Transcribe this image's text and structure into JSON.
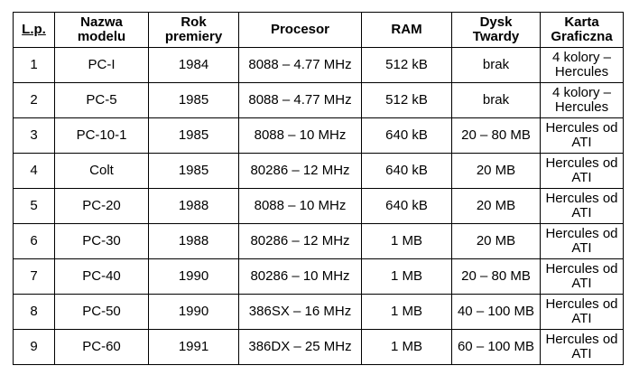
{
  "table": {
    "headers": [
      {
        "lines": [
          "L.p."
        ]
      },
      {
        "lines": [
          "Nazwa",
          "modelu"
        ]
      },
      {
        "lines": [
          "Rok",
          "premiery"
        ]
      },
      {
        "lines": [
          "Procesor"
        ]
      },
      {
        "lines": [
          "RAM"
        ]
      },
      {
        "lines": [
          "Dysk",
          "Twardy"
        ]
      },
      {
        "lines": [
          "Karta",
          "Graficzna"
        ]
      }
    ],
    "rows": [
      {
        "lp": "1",
        "model": "PC-I",
        "year": "1984",
        "cpu": "8088 – 4.77 MHz",
        "ram": "512 kB",
        "hdd": "brak",
        "gpu": [
          "4 kolory –",
          "Hercules"
        ]
      },
      {
        "lp": "2",
        "model": "PC-5",
        "year": "1985",
        "cpu": "8088 – 4.77 MHz",
        "ram": "512 kB",
        "hdd": "brak",
        "gpu": [
          "4 kolory –",
          "Hercules"
        ]
      },
      {
        "lp": "3",
        "model": "PC-10-1",
        "year": "1985",
        "cpu": "8088 – 10 MHz",
        "ram": "640 kB",
        "hdd": "20 – 80 MB",
        "gpu": [
          "Hercules od",
          "ATI"
        ]
      },
      {
        "lp": "4",
        "model": "Colt",
        "year": "1985",
        "cpu": "80286 – 12 MHz",
        "ram": "640 kB",
        "hdd": "20 MB",
        "gpu": [
          "Hercules od",
          "ATI"
        ]
      },
      {
        "lp": "5",
        "model": "PC-20",
        "year": "1988",
        "cpu": "8088 – 10 MHz",
        "ram": "640 kB",
        "hdd": "20 MB",
        "gpu": [
          "Hercules od",
          "ATI"
        ]
      },
      {
        "lp": "6",
        "model": "PC-30",
        "year": "1988",
        "cpu": "80286 – 12 MHz",
        "ram": "1 MB",
        "hdd": "20 MB",
        "gpu": [
          "Hercules od",
          "ATI"
        ]
      },
      {
        "lp": "7",
        "model": "PC-40",
        "year": "1990",
        "cpu": "80286 – 10 MHz",
        "ram": "1 MB",
        "hdd": "20 – 80 MB",
        "gpu": [
          "Hercules od",
          "ATI"
        ]
      },
      {
        "lp": "8",
        "model": "PC-50",
        "year": "1990",
        "cpu": "386SX – 16 MHz",
        "ram": "1 MB",
        "hdd": "40 – 100 MB",
        "gpu": [
          "Hercules od",
          "ATI"
        ]
      },
      {
        "lp": "9",
        "model": "PC-60",
        "year": "1991",
        "cpu": "386DX – 25 MHz",
        "ram": "1 MB",
        "hdd": "60 – 100 MB",
        "gpu": [
          "Hercules od",
          "ATI"
        ]
      }
    ]
  }
}
